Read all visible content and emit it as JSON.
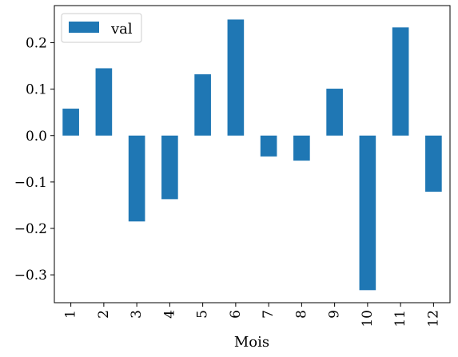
{
  "chart_data": {
    "type": "bar",
    "title": "",
    "xlabel": "Mois",
    "ylabel": "",
    "categories": [
      "1",
      "2",
      "3",
      "4",
      "5",
      "6",
      "7",
      "8",
      "9",
      "10",
      "11",
      "12"
    ],
    "series": [
      {
        "name": "val",
        "color": "#1f77b4",
        "values": [
          0.058,
          0.145,
          -0.185,
          -0.137,
          0.132,
          0.25,
          -0.045,
          -0.054,
          0.101,
          -0.333,
          0.233,
          -0.121
        ]
      }
    ],
    "ylim": [
      -0.36,
      0.28
    ],
    "yticks": [
      -0.3,
      -0.2,
      -0.1,
      0.0,
      0.1,
      0.2
    ],
    "ytick_labels": [
      "−0.3",
      "−0.2",
      "−0.1",
      "0.0",
      "0.1",
      "0.2"
    ],
    "grid": false,
    "legend_position": "top-left",
    "x_tick_rotation": "vertical"
  }
}
